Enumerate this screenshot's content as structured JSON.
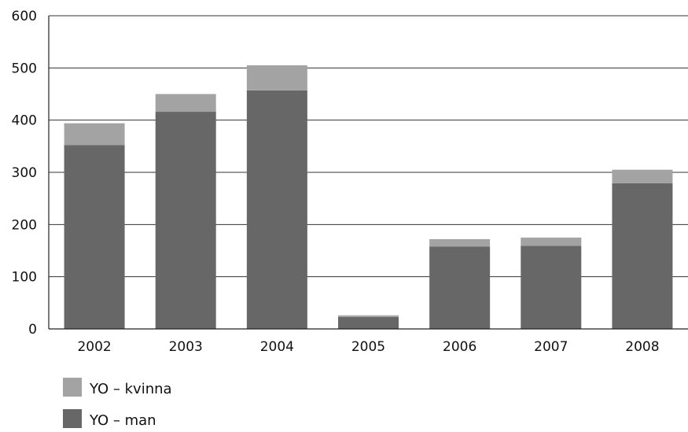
{
  "chart_data": {
    "type": "bar",
    "stacked": true,
    "title": "",
    "xlabel": "",
    "ylabel": "",
    "categories": [
      "2002",
      "2003",
      "2004",
      "2005",
      "2006",
      "2007",
      "2008"
    ],
    "series": [
      {
        "name": "YO – man",
        "color": "#676767",
        "values": [
          352,
          416,
          457,
          23,
          158,
          159,
          279
        ]
      },
      {
        "name": "YO – kvinna",
        "color": "#a3a3a3",
        "values": [
          42,
          34,
          48,
          3,
          14,
          16,
          26
        ]
      }
    ],
    "ylim": [
      0,
      600
    ],
    "yticks": [
      0,
      100,
      200,
      300,
      400,
      500,
      600
    ],
    "grid": true,
    "legend_position": "bottom-left"
  }
}
